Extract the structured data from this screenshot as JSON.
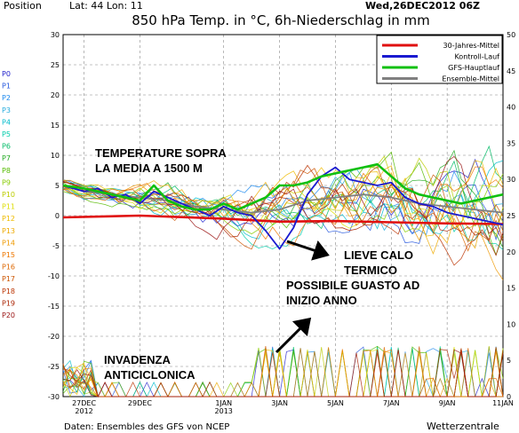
{
  "header": {
    "position_label": "Position",
    "lat_lon": "Lat: 44 Lon: 11",
    "date": "Wed,26DEC2012 06Z",
    "title": "850 hPa Temp. in °C, 6h-Niederschlag in mm"
  },
  "footer": {
    "source": "Daten: Ensembles des GFS von NCEP",
    "brand": "Wetterzentrale"
  },
  "member_labels": [
    "P0",
    "P1",
    "P2",
    "P3",
    "P4",
    "P5",
    "P6",
    "P7",
    "P8",
    "P9",
    "P10",
    "P11",
    "P12",
    "P13",
    "P14",
    "P15",
    "P16",
    "P17",
    "P18",
    "P19",
    "P20"
  ],
  "member_colors": [
    "#2222cc",
    "#2255dd",
    "#1a88ee",
    "#22aadd",
    "#00bbcc",
    "#00ccaa",
    "#00bb66",
    "#22aa22",
    "#55bb00",
    "#88cc00",
    "#bbcc00",
    "#dddd00",
    "#eebb00",
    "#eeaa00",
    "#ee9900",
    "#ee7700",
    "#dd6600",
    "#cc5500",
    "#bb3300",
    "#aa2200",
    "#991111"
  ],
  "annotations": [
    {
      "line1": "TEMPERATURE SOPRA",
      "line2": "LA MEDIA A 1500 M"
    },
    {
      "line1": "LIEVE CALO",
      "line2": "TERMICO"
    },
    {
      "line1": "POSSIBILE GUASTO AD",
      "line2": "INIZIO ANNO"
    },
    {
      "line1": "INVADENZA",
      "line2": "ANTICICLONICA"
    }
  ],
  "chart_data": {
    "type": "line",
    "title": "850 hPa Temp. in °C, 6h-Niederschlag in mm",
    "x_ticks": [
      "27DEC 2012",
      "29DEC",
      "1JAN 2013",
      "3JAN",
      "5JAN",
      "7JAN",
      "9JAN",
      "11JAN"
    ],
    "x_range_days": [
      26.25,
      42
    ],
    "y_left": {
      "range": [
        -30,
        30
      ],
      "ticks": [
        -30,
        -25,
        -20,
        -15,
        -10,
        -5,
        0,
        5,
        10,
        15,
        20,
        25,
        30
      ]
    },
    "y_right": {
      "range": [
        0,
        50
      ],
      "ticks": [
        0,
        5,
        10,
        15,
        20,
        25,
        30,
        35,
        40,
        45,
        50
      ]
    },
    "grid": true,
    "legend_position": "top-right",
    "legend": [
      {
        "name": "30-Jahres-Mittel",
        "color": "#e01010"
      },
      {
        "name": "Kontroll-Lauf",
        "color": "#1a1ad0"
      },
      {
        "name": "GFS-Hauptlauf",
        "color": "#10c010"
      },
      {
        "name": "Ensemble-Mittel",
        "color": "#808080"
      }
    ],
    "series": [
      {
        "name": "30-Jahres-Mittel",
        "x": [
          26.25,
          29,
          32,
          34,
          36,
          38,
          40,
          42
        ],
        "y": [
          -0.3,
          0,
          -0.5,
          -1,
          -0.9,
          -1.1,
          -1.3,
          -1.4
        ]
      },
      {
        "name": "Kontroll-Lauf",
        "x": [
          26.25,
          27,
          27.5,
          28,
          28.5,
          29,
          29.5,
          30,
          30.5,
          31,
          31.5,
          32,
          32.5,
          33,
          33.5,
          34,
          34.5,
          35,
          35.5,
          36,
          36.5,
          37,
          37.5,
          38,
          38.5,
          39,
          39.5,
          40,
          40.5,
          41,
          41.5,
          42
        ],
        "y": [
          5,
          4,
          4.5,
          3,
          3.5,
          2,
          4,
          3,
          2,
          1,
          0,
          1.5,
          0.5,
          0,
          -2.5,
          -5.5,
          -2,
          3.5,
          6.5,
          8,
          6,
          5.5,
          5,
          5.5,
          3,
          2,
          1.5,
          0.5,
          0,
          -0.5,
          -1,
          -1.5
        ]
      },
      {
        "name": "GFS-Hauptlauf",
        "x": [
          26.25,
          27,
          27.5,
          28,
          28.5,
          29,
          29.5,
          30,
          30.5,
          31,
          31.5,
          32,
          32.5,
          33,
          33.5,
          34,
          34.5,
          35,
          35.5,
          36,
          36.5,
          37,
          37.5,
          38,
          38.5,
          39,
          39.5,
          40,
          40.5,
          41,
          41.5,
          42
        ],
        "y": [
          5,
          4.5,
          4,
          3.5,
          3,
          2.5,
          5,
          2.5,
          1.5,
          1,
          1,
          2,
          1,
          2,
          3,
          5,
          5,
          5.5,
          6.5,
          7,
          7.5,
          8,
          8.5,
          6.5,
          4.5,
          3.5,
          3,
          2.5,
          2,
          2.5,
          3,
          3.5
        ]
      },
      {
        "name": "Ensemble-Mittel",
        "x": [
          26.25,
          27,
          28,
          29,
          30,
          31,
          32,
          33,
          34,
          35,
          36,
          37,
          38,
          39,
          40,
          41,
          42
        ],
        "y": [
          5,
          4,
          3.5,
          3,
          2.5,
          1.5,
          1,
          0.5,
          1,
          2.5,
          3,
          3.5,
          3,
          2,
          1.5,
          1,
          0.5
        ]
      }
    ]
  }
}
